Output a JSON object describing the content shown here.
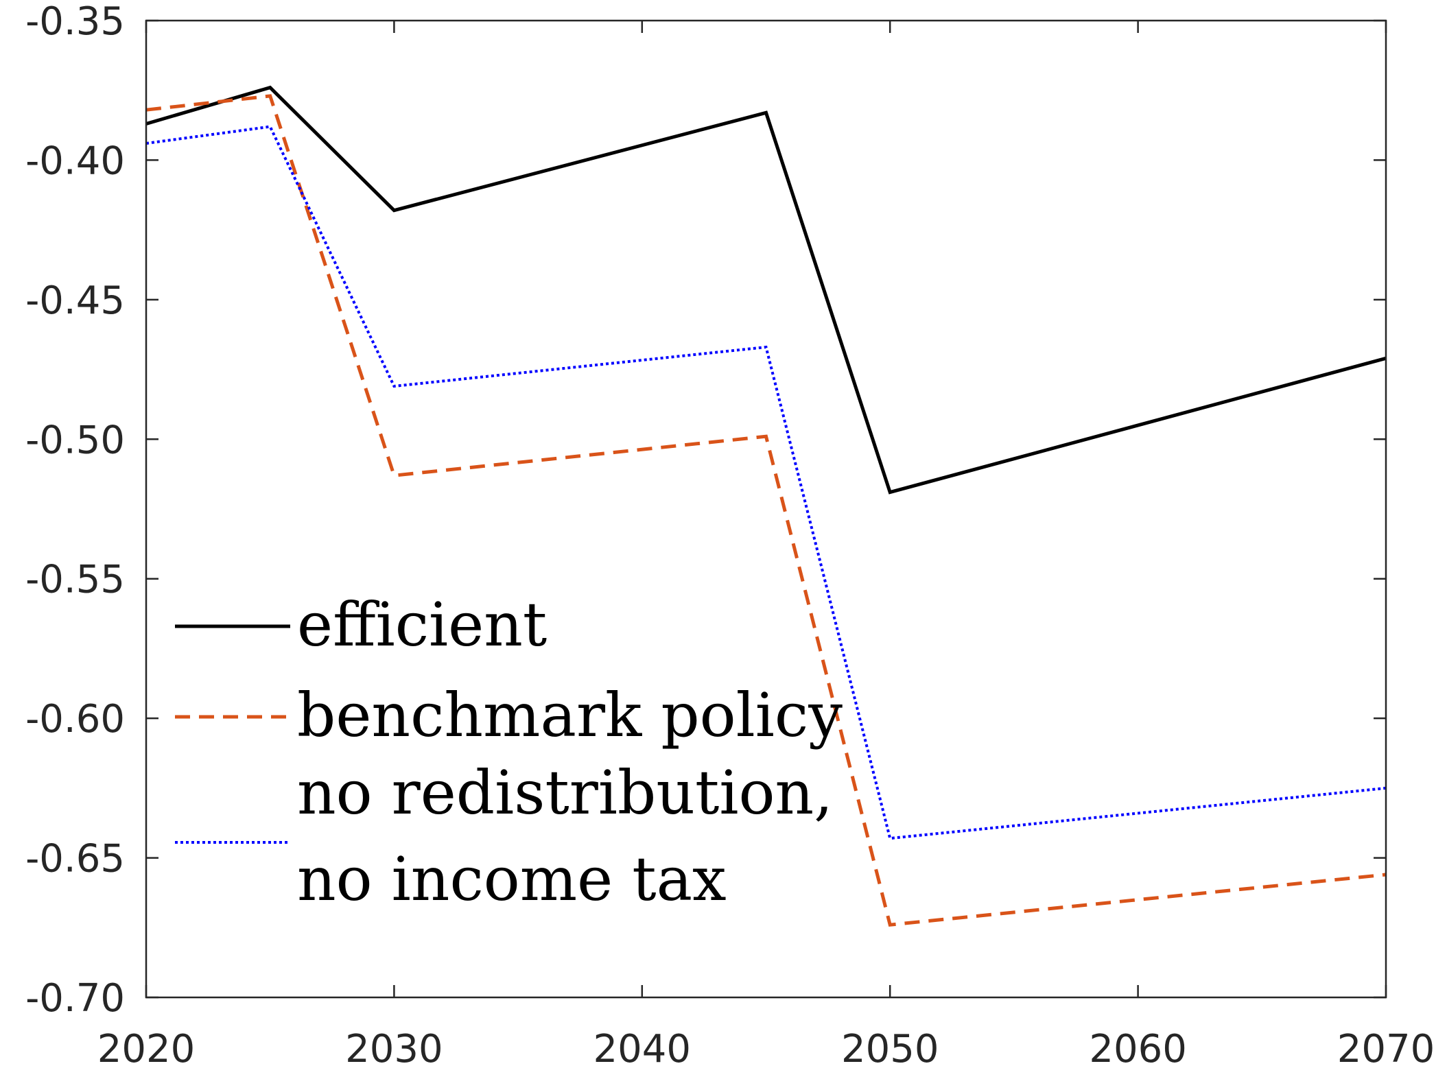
{
  "chart_data": {
    "type": "line",
    "title": "",
    "xlabel": "",
    "ylabel": "",
    "xlim": [
      2020,
      2070
    ],
    "ylim": [
      -0.7,
      -0.35
    ],
    "xticks": [
      2020,
      2030,
      2040,
      2050,
      2060,
      2070
    ],
    "xtick_labels": [
      "2020",
      "2030",
      "2040",
      "2050",
      "2060",
      "2070"
    ],
    "yticks": [
      -0.7,
      -0.65,
      -0.6,
      -0.55,
      -0.5,
      -0.45,
      -0.4,
      -0.35
    ],
    "ytick_labels": [
      "-0.70",
      "-0.65",
      "-0.60",
      "-0.55",
      "-0.50",
      "-0.45",
      "-0.40",
      "-0.35"
    ],
    "grid": false,
    "legend_position": "lower-left",
    "x": [
      2020,
      2025,
      2030,
      2045,
      2050,
      2070
    ],
    "series": [
      {
        "name": "efficient",
        "values": [
          -0.387,
          -0.374,
          -0.418,
          -0.383,
          -0.519,
          -0.471
        ],
        "color": "#000000",
        "style": "solid"
      },
      {
        "name": "benchmark policy",
        "values": [
          -0.382,
          -0.377,
          -0.513,
          -0.499,
          -0.674,
          -0.656
        ],
        "color": "#d95319",
        "style": "dashed"
      },
      {
        "name": "no redistribution,",
        "name_line2": "no income tax",
        "values": [
          -0.394,
          -0.388,
          -0.481,
          -0.467,
          -0.643,
          -0.625
        ],
        "color": "#0000ff",
        "style": "dotted"
      }
    ]
  }
}
